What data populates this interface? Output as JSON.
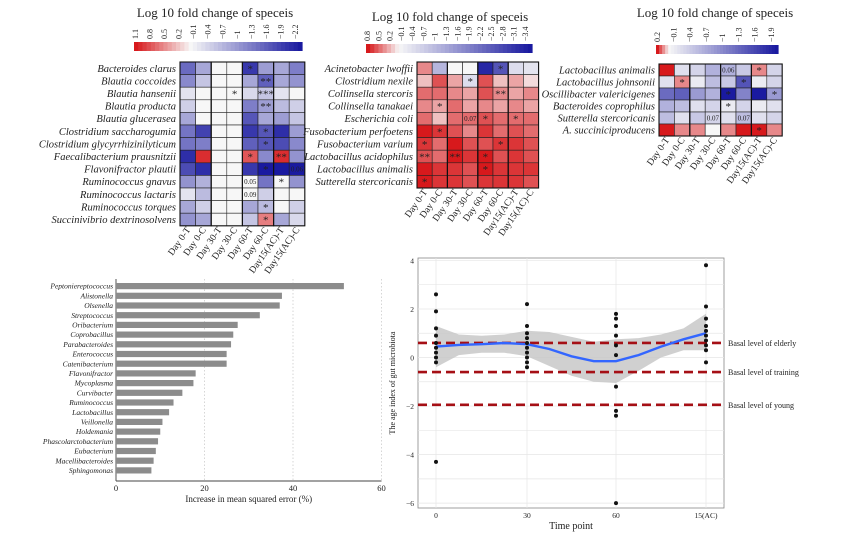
{
  "chart_data": [
    {
      "type": "heatmap",
      "title": "Log 10 fold change  of speceis",
      "colorbar_ticks": [
        "1.1",
        "0.8",
        "0.5",
        "0.2",
        "−0.1",
        "−0.4",
        "−0.7",
        "−1",
        "−1.3",
        "−1.6",
        "−1.9",
        "−2.2"
      ],
      "rows": [
        "Bacteroides clarus",
        "Blautia coccoides",
        "Blautia hansenii",
        "Blautia producta",
        "Blautia glucerasea",
        "Clostridium saccharogumia",
        "Clostridium glycyrrhizinilyticum",
        "Faecalibacterium prausnitzii",
        "Flavonifractor plautii",
        "Ruminococcus gnavus",
        "Ruminococcus lactaris",
        "Ruminococcus torques",
        "Succinivibrio dextrinosolvens"
      ],
      "columns": [
        "Day 0-T",
        "Day 0-C",
        "Day 30-T",
        "Day 30-C",
        "Day 60-T",
        "Day 60-C",
        "Day15(AC)-T",
        "Day15(AC)-C"
      ],
      "values": [
        [
          -1.4,
          -0.8,
          0,
          0,
          -1.9,
          -0.9,
          -0.8,
          -1.2
        ],
        [
          -1.1,
          -0.5,
          0,
          0,
          -0.8,
          -1.5,
          -0.8,
          -1.0
        ],
        [
          -0.2,
          0,
          0,
          0,
          -0.3,
          -0.5,
          -0.2,
          0
        ],
        [
          -0.4,
          0,
          0,
          0,
          -1.2,
          -0.9,
          -0.6,
          -0.4
        ],
        [
          -0.8,
          0,
          0,
          0,
          -1.6,
          -0.8,
          -0.9,
          -0.5
        ],
        [
          -1.3,
          -1.8,
          0,
          0,
          -1.9,
          -1.6,
          -2.0,
          -0.9
        ],
        [
          -1.3,
          -1.2,
          0,
          0,
          -1.5,
          -1.6,
          -1.7,
          -1.1
        ],
        [
          -2.0,
          1.0,
          0,
          0,
          0.8,
          -1.1,
          1.0,
          -1.0
        ],
        [
          -1.7,
          -2.0,
          0,
          0,
          -1.9,
          -2.2,
          -2.2,
          -2.2
        ],
        [
          -1.0,
          -0.7,
          0,
          0,
          0,
          -1.3,
          0,
          -1.0
        ],
        [
          -0.2,
          -0.6,
          0,
          0,
          0,
          -0.4,
          0,
          0
        ],
        [
          -0.8,
          -0.4,
          0,
          0,
          -0.8,
          -0.6,
          0,
          -0.4
        ],
        [
          -1.0,
          -0.8,
          0,
          0,
          -0.5,
          0.6,
          -0.8,
          -0.3
        ]
      ],
      "annotations": [
        {
          "row": 0,
          "col": 4,
          "text": "*"
        },
        {
          "row": 1,
          "col": 5,
          "text": "**"
        },
        {
          "row": 2,
          "col": 3,
          "text": "*"
        },
        {
          "row": 2,
          "col": 5,
          "text": "***"
        },
        {
          "row": 3,
          "col": 5,
          "text": "**"
        },
        {
          "row": 5,
          "col": 5,
          "text": "*"
        },
        {
          "row": 6,
          "col": 5,
          "text": "*"
        },
        {
          "row": 7,
          "col": 4,
          "text": "*"
        },
        {
          "row": 7,
          "col": 6,
          "text": "**"
        },
        {
          "row": 8,
          "col": 5,
          "text": "*"
        },
        {
          "row": 8,
          "col": 7,
          "text": "0.06"
        },
        {
          "row": 9,
          "col": 4,
          "text": "0.05"
        },
        {
          "row": 9,
          "col": 6,
          "text": "*"
        },
        {
          "row": 10,
          "col": 4,
          "text": "0.09"
        },
        {
          "row": 11,
          "col": 5,
          "text": "*"
        },
        {
          "row": 12,
          "col": 5,
          "text": "*"
        }
      ]
    },
    {
      "type": "heatmap",
      "title": "Log 10 fold change  of speceis",
      "colorbar_ticks": [
        "0.8",
        "0.5",
        "0.2",
        "−0.1",
        "−0.4",
        "−0.7",
        "−1",
        "−1.3",
        "−1.6",
        "−1.9",
        "−2.2",
        "−2.5",
        "−2.8",
        "−3.1",
        "−3.4"
      ],
      "rows": [
        "Acinetobacter lwoffii",
        "Clostridium nexile",
        "Collinsella stercoris",
        "Collinsella tanakaei",
        "Escherichia coli",
        "Fusobacterium perfoetens",
        "Fusobacterium varium",
        "Lactobacillus acidophilus",
        "Lactobacillus animalis",
        "Sutterella stercoricanis"
      ],
      "columns": [
        "Day 0-T",
        "Day 0-C",
        "Day 30-T",
        "Day 30-C",
        "Day 60-T",
        "Day 60-C",
        "Day15(AC)-T",
        "Day15(AC)-C"
      ],
      "values": [
        [
          0.4,
          -1.0,
          0,
          0,
          -3.2,
          -2.5,
          -0.4,
          -0.3
        ],
        [
          0.2,
          0.6,
          0.3,
          -0.4,
          0.6,
          0.2,
          0.3,
          0.1
        ],
        [
          0.5,
          0.5,
          0.4,
          0.3,
          0.6,
          0.4,
          0.3,
          0.4
        ],
        [
          0.4,
          0.3,
          0.5,
          0.3,
          0.4,
          0.3,
          0.4,
          0.3
        ],
        [
          0.5,
          0.2,
          0.5,
          0.5,
          0.6,
          0.5,
          0.5,
          0.5
        ],
        [
          0.8,
          0.7,
          0.6,
          0.4,
          0.7,
          0.5,
          0.6,
          0.5
        ],
        [
          0.7,
          0.5,
          0.8,
          0.6,
          0.6,
          0.7,
          0.7,
          0.6
        ],
        [
          0.6,
          0.5,
          0.8,
          0.7,
          0.8,
          0.6,
          0.7,
          0.6
        ],
        [
          0.8,
          0.7,
          0.7,
          0.6,
          0.8,
          0.7,
          0.7,
          0.7
        ],
        [
          0.8,
          0.7,
          0.7,
          0.6,
          0.7,
          0.7,
          0.7,
          0.6
        ]
      ],
      "annotations": [
        {
          "row": 0,
          "col": 5,
          "text": "*"
        },
        {
          "row": 1,
          "col": 3,
          "text": "*"
        },
        {
          "row": 2,
          "col": 5,
          "text": "**"
        },
        {
          "row": 3,
          "col": 1,
          "text": "*"
        },
        {
          "row": 4,
          "col": 3,
          "text": "0.07"
        },
        {
          "row": 4,
          "col": 4,
          "text": "*"
        },
        {
          "row": 4,
          "col": 6,
          "text": "*"
        },
        {
          "row": 5,
          "col": 1,
          "text": "*"
        },
        {
          "row": 6,
          "col": 0,
          "text": "*"
        },
        {
          "row": 6,
          "col": 5,
          "text": "*"
        },
        {
          "row": 7,
          "col": 0,
          "text": "**"
        },
        {
          "row": 7,
          "col": 2,
          "text": "**"
        },
        {
          "row": 7,
          "col": 4,
          "text": "*"
        },
        {
          "row": 8,
          "col": 4,
          "text": "*"
        },
        {
          "row": 9,
          "col": 0,
          "text": "*"
        }
      ]
    },
    {
      "type": "heatmap",
      "title": "Log 10 fold change  of speceis",
      "colorbar_ticks": [
        "0.2",
        "−0.1",
        "−0.4",
        "−0.7",
        "−1",
        "−1.3",
        "−1.6",
        "−1.9"
      ],
      "rows": [
        "Lactobacillus animalis",
        "Lactobacillus johnsonii",
        "Oscillibacter valericigenes",
        "Bacteroides coprophilus",
        "Sutterella stercoricanis",
        "A. succiniciproducens"
      ],
      "columns": [
        "Day 0-T",
        "Day 0-C",
        "Day 30-T",
        "Day 30-C",
        "Day 60-T",
        "Day 60-C",
        "Day15(AC)-T",
        "Day15(AC)-C"
      ],
      "values": [
        [
          0.2,
          -0.2,
          -0.3,
          -0.6,
          -0.6,
          -0.4,
          0.1,
          -0.3
        ],
        [
          -0.2,
          0.1,
          -0.1,
          -0.5,
          -0.4,
          -1.4,
          -0.1,
          -0.3
        ],
        [
          -1.2,
          -1.3,
          -0.8,
          -0.6,
          -2.0,
          -1.0,
          -1.9,
          -0.8
        ],
        [
          -0.6,
          -0.5,
          -0.2,
          -0.3,
          -0.1,
          -0.3,
          -0.1,
          -0.2
        ],
        [
          -0.5,
          -0.2,
          -0.4,
          -0.3,
          -0.2,
          -0.5,
          -0.2,
          -0.3
        ],
        [
          0.2,
          0.1,
          0.1,
          0,
          0.1,
          0.2,
          0.2,
          0.1
        ]
      ],
      "annotations": [
        {
          "row": 0,
          "col": 4,
          "text": "0.06"
        },
        {
          "row": 0,
          "col": 6,
          "text": "*"
        },
        {
          "row": 1,
          "col": 1,
          "text": "*"
        },
        {
          "row": 1,
          "col": 5,
          "text": "*"
        },
        {
          "row": 2,
          "col": 4,
          "text": "*"
        },
        {
          "row": 2,
          "col": 7,
          "text": "*"
        },
        {
          "row": 3,
          "col": 4,
          "text": "*"
        },
        {
          "row": 4,
          "col": 3,
          "text": "0.07"
        },
        {
          "row": 4,
          "col": 5,
          "text": "0.07"
        },
        {
          "row": 5,
          "col": 6,
          "text": "*"
        }
      ]
    },
    {
      "type": "bar",
      "orientation": "horizontal",
      "categories": [
        "Peptoniereptococcus",
        "Alistonella",
        "Olsenella",
        "Streptococcus",
        "Oribacterium",
        "Coprobacillus",
        "Parabacteroides",
        "Enterococcus",
        "Catenibacterium",
        "Flavonifractor",
        "Mycoplasma",
        "Curvibacter",
        "Ruminococcus",
        "Lactobacillus",
        "Veillonella",
        "Holdemania",
        "Phascolarctobacterium",
        "Eubacterium",
        "Macellibacteroides",
        "Sphingomonas"
      ],
      "values": [
        51.5,
        37.5,
        37,
        32.5,
        27.5,
        26.5,
        26,
        25,
        25,
        18,
        17.5,
        15,
        13,
        12,
        10.5,
        10,
        9.5,
        9,
        8.5,
        8
      ],
      "xlabel": "Increase in mean squared error (%)",
      "xlim": [
        0,
        60
      ],
      "xticks": [
        "0",
        "20",
        "40",
        "60"
      ]
    },
    {
      "type": "scatter",
      "xlabel": "Time point",
      "ylabel": "The age index of gut microbiota",
      "x_categories": [
        "0",
        "30",
        "60",
        "15(AC)"
      ],
      "ylim": [
        -6.2,
        4.1
      ],
      "yticks": [
        "−6",
        "−4",
        "−2",
        "0",
        "2",
        "4"
      ],
      "points": [
        {
          "x": 0,
          "y": 2.6
        },
        {
          "x": 0,
          "y": 1.9
        },
        {
          "x": 0,
          "y": 1.2
        },
        {
          "x": 0,
          "y": 0.9
        },
        {
          "x": 0,
          "y": 0.6
        },
        {
          "x": 0,
          "y": 0.4
        },
        {
          "x": 0,
          "y": 0.2
        },
        {
          "x": 0,
          "y": 0
        },
        {
          "x": 0,
          "y": -0.2
        },
        {
          "x": 0,
          "y": -4.3
        },
        {
          "x": 1,
          "y": 2.2
        },
        {
          "x": 1,
          "y": 1.3
        },
        {
          "x": 1,
          "y": 1
        },
        {
          "x": 1,
          "y": 0.8
        },
        {
          "x": 1,
          "y": 0.6
        },
        {
          "x": 1,
          "y": 0.4
        },
        {
          "x": 1,
          "y": 0.2
        },
        {
          "x": 1,
          "y": 0
        },
        {
          "x": 1,
          "y": -0.2
        },
        {
          "x": 1,
          "y": -0.4
        },
        {
          "x": 2,
          "y": 1.8
        },
        {
          "x": 2,
          "y": 1.6
        },
        {
          "x": 2,
          "y": 1.3
        },
        {
          "x": 2,
          "y": 0.9
        },
        {
          "x": 2,
          "y": 0.5
        },
        {
          "x": 2,
          "y": 0.1
        },
        {
          "x": 2,
          "y": -1.2
        },
        {
          "x": 2,
          "y": -2.2
        },
        {
          "x": 2,
          "y": -2.4
        },
        {
          "x": 2,
          "y": -6
        },
        {
          "x": 3,
          "y": 3.8
        },
        {
          "x": 3,
          "y": 2.1
        },
        {
          "x": 3,
          "y": 1.6
        },
        {
          "x": 3,
          "y": 1.3
        },
        {
          "x": 3,
          "y": 1.1
        },
        {
          "x": 3,
          "y": 0.9
        },
        {
          "x": 3,
          "y": 0.7
        },
        {
          "x": 3,
          "y": 0.5
        },
        {
          "x": 3,
          "y": 0.3
        },
        {
          "x": 3,
          "y": -0.2
        }
      ],
      "smooth": [
        {
          "x": 0,
          "y": 0.45
        },
        {
          "x": 0.25,
          "y": 0.52
        },
        {
          "x": 0.5,
          "y": 0.55
        },
        {
          "x": 0.75,
          "y": 0.6
        },
        {
          "x": 1,
          "y": 0.55
        },
        {
          "x": 1.25,
          "y": 0.35
        },
        {
          "x": 1.5,
          "y": 0.05
        },
        {
          "x": 1.75,
          "y": -0.15
        },
        {
          "x": 2,
          "y": -0.15
        },
        {
          "x": 2.25,
          "y": 0.1
        },
        {
          "x": 2.5,
          "y": 0.45
        },
        {
          "x": 2.75,
          "y": 0.75
        },
        {
          "x": 3,
          "y": 1.0
        }
      ],
      "band": [
        {
          "x": 0,
          "lo": -0.4,
          "hi": 1.3
        },
        {
          "x": 0.25,
          "lo": 0.1,
          "hi": 0.95
        },
        {
          "x": 0.5,
          "lo": 0.2,
          "hi": 0.9
        },
        {
          "x": 0.75,
          "lo": 0.2,
          "hi": 0.95
        },
        {
          "x": 1,
          "lo": 0.05,
          "hi": 1.1
        },
        {
          "x": 1.25,
          "lo": -0.35,
          "hi": 1.05
        },
        {
          "x": 1.5,
          "lo": -0.75,
          "hi": 0.85
        },
        {
          "x": 1.75,
          "lo": -1.0,
          "hi": 0.65
        },
        {
          "x": 2,
          "lo": -1.05,
          "hi": 0.75
        },
        {
          "x": 2.25,
          "lo": -0.55,
          "hi": 0.8
        },
        {
          "x": 2.5,
          "lo": 0.0,
          "hi": 0.95
        },
        {
          "x": 2.75,
          "lo": 0.3,
          "hi": 1.2
        },
        {
          "x": 3,
          "lo": 0.3,
          "hi": 1.8
        }
      ],
      "reference_lines": [
        {
          "y": 0.6,
          "label": "Basal level of elderly"
        },
        {
          "y": -0.6,
          "label": "Basal level of training"
        },
        {
          "y": -1.95,
          "label": "Basal level of young"
        }
      ]
    }
  ],
  "colors": {
    "red": "#d7191c",
    "white": "#f7f7f7",
    "blue": "#1a1aa0",
    "bar": "#8c8c8c",
    "smooth": "#3366ff",
    "ref": "#a50f15",
    "band": "#c8c8c8"
  }
}
